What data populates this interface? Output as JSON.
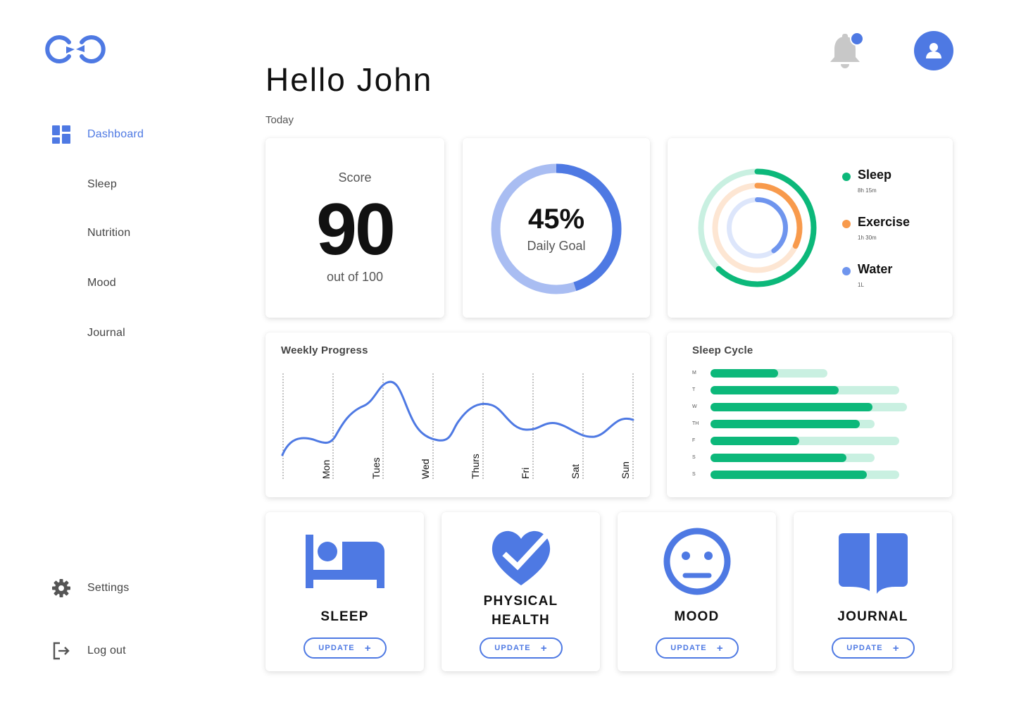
{
  "app": {
    "logo_icon": "infinity-logo-icon"
  },
  "colors": {
    "primary": "#4E79E3",
    "light_blue": "#A9BDF2",
    "green": "#0CB87A",
    "green_light": "#C9F0E1",
    "orange": "#F89A4C",
    "orange_light": "#FDE6D3",
    "water": "#6F95EE",
    "water_light": "#DDE6FB",
    "bell_gray": "#C8C8C8"
  },
  "sidebar": {
    "items": [
      {
        "label": "Dashboard",
        "icon": "dashboard-grid-icon",
        "active": true
      },
      {
        "label": "Sleep"
      },
      {
        "label": "Nutrition"
      },
      {
        "label": "Mood"
      },
      {
        "label": "Journal"
      }
    ],
    "settings_label": "Settings",
    "settings_icon": "gear-icon",
    "logout_label": "Log out",
    "logout_icon": "logout-icon"
  },
  "header": {
    "greeting": "Hello John",
    "section": "Today",
    "notification_icon": "bell-icon",
    "has_unread": true,
    "profile_icon": "user-icon"
  },
  "score": {
    "title": "Score",
    "value": "90",
    "subtitle": "out of 100"
  },
  "daily_goal": {
    "percent_label": "45%",
    "label": "Daily Goal",
    "progress": 0.45
  },
  "activity": {
    "items": [
      {
        "name": "Sleep",
        "value": "8h 15m",
        "color": "#0CB87A",
        "track": "#C9F0E1",
        "progress": 0.62
      },
      {
        "name": "Exercise",
        "value": "1h 30m",
        "color": "#F89A4C",
        "track": "#FDE6D3",
        "progress": 0.32
      },
      {
        "name": "Water",
        "value": "1L",
        "color": "#6F95EE",
        "track": "#DDE6FB",
        "progress": 0.4
      }
    ]
  },
  "weekly": {
    "title": "Weekly Progress",
    "days": [
      "Mon",
      "Tues",
      "Wed",
      "Thurs",
      "Fri",
      "Sat",
      "Sun"
    ]
  },
  "sleep_cycle": {
    "title": "Sleep Cycle",
    "rows": [
      {
        "day": "M",
        "total": 0.62,
        "value": 0.36
      },
      {
        "day": "T",
        "total": 1.0,
        "value": 0.68
      },
      {
        "day": "W",
        "total": 1.04,
        "value": 0.86
      },
      {
        "day": "TH",
        "total": 0.87,
        "value": 0.79
      },
      {
        "day": "F",
        "total": 1.0,
        "value": 0.47
      },
      {
        "day": "S",
        "total": 0.87,
        "value": 0.72
      },
      {
        "day": "S",
        "total": 1.0,
        "value": 0.83
      }
    ]
  },
  "tiles": [
    {
      "label": "SLEEP",
      "icon": "bed-icon",
      "button": "UPDATE"
    },
    {
      "label": "PHYSICAL\nHEALTH",
      "icon": "heart-check-icon",
      "button": "UPDATE"
    },
    {
      "label": "MOOD",
      "icon": "neutral-face-icon",
      "button": "UPDATE"
    },
    {
      "label": "JOURNAL",
      "icon": "open-book-icon",
      "button": "UPDATE"
    }
  ]
}
